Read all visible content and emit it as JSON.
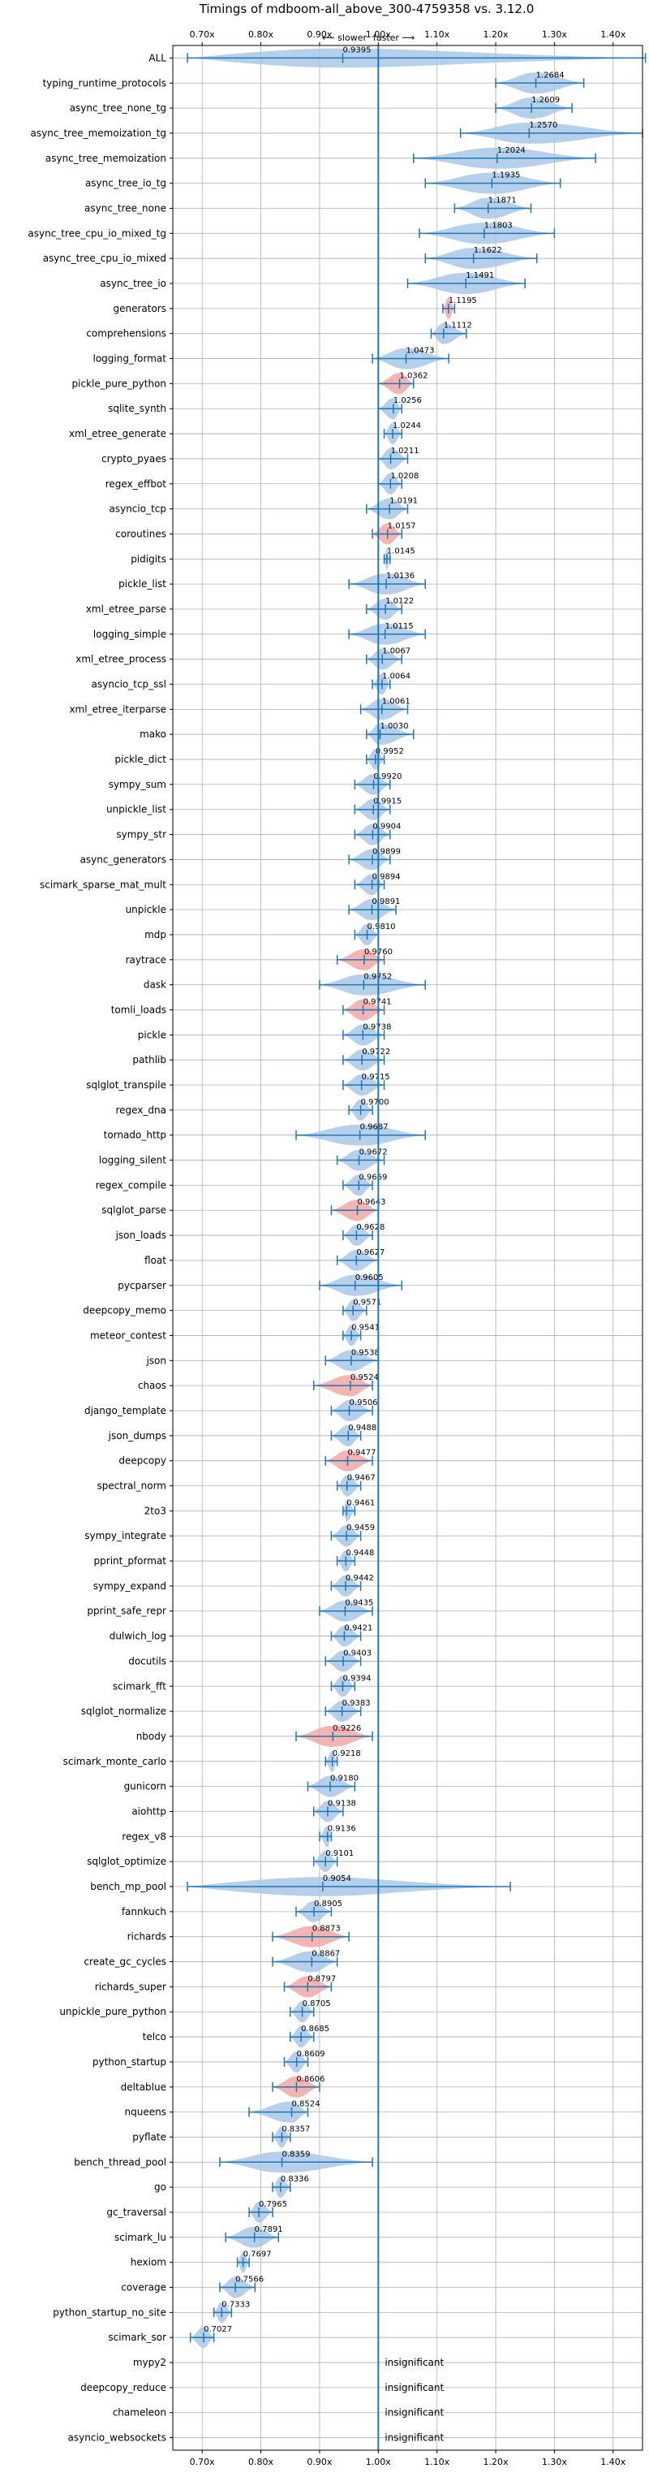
{
  "chart_data": {
    "type": "violin",
    "title": "Timings of mdboom-all_above_300-4759358 vs. 3.12.0",
    "subtitle_slower": "⟵ slower",
    "subtitle_faster": "faster ⟶",
    "xlim": [
      0.65,
      1.45
    ],
    "x_ticks": [
      0.7,
      0.8,
      0.9,
      1.0,
      1.1,
      1.2,
      1.3,
      1.4
    ],
    "x_tick_labels": [
      "0.70x",
      "0.80x",
      "0.90x",
      "1.00x",
      "1.10x",
      "1.20x",
      "1.30x",
      "1.40x"
    ],
    "reference_x": 1.0,
    "colors": {
      "normal": "#a9c8e8",
      "regression": "#f2a7a6",
      "line": "#1f77b4"
    },
    "insignificant_label": "insignificant",
    "benchmarks": [
      {
        "name": "ALL",
        "mean": 0.9395,
        "min": 0.675,
        "max": 1.455,
        "label": "0.9395",
        "color": "normal",
        "wide": true
      },
      {
        "name": "typing_runtime_protocols",
        "mean": 1.2684,
        "min": 1.2,
        "max": 1.35,
        "label": "1.2684",
        "color": "normal"
      },
      {
        "name": "async_tree_none_tg",
        "mean": 1.2609,
        "min": 1.2,
        "max": 1.33,
        "label": "1.2609",
        "color": "normal"
      },
      {
        "name": "async_tree_memoization_tg",
        "mean": 1.257,
        "min": 1.14,
        "max": 1.45,
        "label": "1.2570",
        "color": "normal"
      },
      {
        "name": "async_tree_memoization",
        "mean": 1.2024,
        "min": 1.06,
        "max": 1.37,
        "label": "1.2024",
        "color": "normal"
      },
      {
        "name": "async_tree_io_tg",
        "mean": 1.1935,
        "min": 1.08,
        "max": 1.31,
        "label": "1.1935",
        "color": "normal"
      },
      {
        "name": "async_tree_none",
        "mean": 1.1871,
        "min": 1.13,
        "max": 1.26,
        "label": "1.1871",
        "color": "normal"
      },
      {
        "name": "async_tree_cpu_io_mixed_tg",
        "mean": 1.1803,
        "min": 1.07,
        "max": 1.3,
        "label": "1.1803",
        "color": "normal"
      },
      {
        "name": "async_tree_cpu_io_mixed",
        "mean": 1.1622,
        "min": 1.08,
        "max": 1.27,
        "label": "1.1622",
        "color": "normal"
      },
      {
        "name": "async_tree_io",
        "mean": 1.1491,
        "min": 1.05,
        "max": 1.25,
        "label": "1.1491",
        "color": "normal"
      },
      {
        "name": "generators",
        "mean": 1.1195,
        "min": 1.11,
        "max": 1.13,
        "label": "1.1195",
        "color": "regression"
      },
      {
        "name": "comprehensions",
        "mean": 1.1112,
        "min": 1.09,
        "max": 1.15,
        "label": "1.1112",
        "color": "normal"
      },
      {
        "name": "logging_format",
        "mean": 1.0473,
        "min": 0.99,
        "max": 1.12,
        "label": "1.0473",
        "color": "normal"
      },
      {
        "name": "pickle_pure_python",
        "mean": 1.0362,
        "min": 1.0,
        "max": 1.06,
        "label": "1.0362",
        "color": "regression"
      },
      {
        "name": "sqlite_synth",
        "mean": 1.0256,
        "min": 1.0,
        "max": 1.04,
        "label": "1.0256",
        "color": "normal"
      },
      {
        "name": "xml_etree_generate",
        "mean": 1.0244,
        "min": 1.01,
        "max": 1.04,
        "label": "1.0244",
        "color": "normal"
      },
      {
        "name": "crypto_pyaes",
        "mean": 1.0211,
        "min": 1.0,
        "max": 1.05,
        "label": "1.0211",
        "color": "normal"
      },
      {
        "name": "regex_effbot",
        "mean": 1.0208,
        "min": 1.0,
        "max": 1.04,
        "label": "1.0208",
        "color": "normal"
      },
      {
        "name": "asyncio_tcp",
        "mean": 1.0191,
        "min": 0.98,
        "max": 1.05,
        "label": "1.0191",
        "color": "normal"
      },
      {
        "name": "coroutines",
        "mean": 1.0157,
        "min": 0.99,
        "max": 1.04,
        "label": "1.0157",
        "color": "regression"
      },
      {
        "name": "pidigits",
        "mean": 1.0145,
        "min": 1.01,
        "max": 1.02,
        "label": "1.0145",
        "color": "normal"
      },
      {
        "name": "pickle_list",
        "mean": 1.0136,
        "min": 0.95,
        "max": 1.08,
        "label": "1.0136",
        "color": "normal"
      },
      {
        "name": "xml_etree_parse",
        "mean": 1.0122,
        "min": 0.98,
        "max": 1.04,
        "label": "1.0122",
        "color": "normal"
      },
      {
        "name": "logging_simple",
        "mean": 1.0115,
        "min": 0.95,
        "max": 1.08,
        "label": "1.0115",
        "color": "normal"
      },
      {
        "name": "xml_etree_process",
        "mean": 1.0067,
        "min": 0.98,
        "max": 1.04,
        "label": "1.0067",
        "color": "normal"
      },
      {
        "name": "asyncio_tcp_ssl",
        "mean": 1.0064,
        "min": 0.99,
        "max": 1.02,
        "label": "1.0064",
        "color": "normal"
      },
      {
        "name": "xml_etree_iterparse",
        "mean": 1.0061,
        "min": 0.97,
        "max": 1.05,
        "label": "1.0061",
        "color": "normal"
      },
      {
        "name": "mako",
        "mean": 1.003,
        "min": 0.98,
        "max": 1.06,
        "label": "1.0030",
        "color": "normal"
      },
      {
        "name": "pickle_dict",
        "mean": 0.9952,
        "min": 0.98,
        "max": 1.01,
        "label": "0.9952",
        "color": "normal"
      },
      {
        "name": "sympy_sum",
        "mean": 0.992,
        "min": 0.96,
        "max": 1.02,
        "label": "0.9920",
        "color": "normal"
      },
      {
        "name": "unpickle_list",
        "mean": 0.9915,
        "min": 0.96,
        "max": 1.02,
        "label": "0.9915",
        "color": "normal"
      },
      {
        "name": "sympy_str",
        "mean": 0.9904,
        "min": 0.96,
        "max": 1.02,
        "label": "0.9904",
        "color": "normal"
      },
      {
        "name": "async_generators",
        "mean": 0.9899,
        "min": 0.95,
        "max": 1.02,
        "label": "0.9899",
        "color": "normal"
      },
      {
        "name": "scimark_sparse_mat_mult",
        "mean": 0.9894,
        "min": 0.96,
        "max": 1.01,
        "label": "0.9894",
        "color": "normal"
      },
      {
        "name": "unpickle",
        "mean": 0.9891,
        "min": 0.95,
        "max": 1.03,
        "label": "0.9891",
        "color": "normal"
      },
      {
        "name": "mdp",
        "mean": 0.981,
        "min": 0.96,
        "max": 1.0,
        "label": "0.9810",
        "color": "normal"
      },
      {
        "name": "raytrace",
        "mean": 0.976,
        "min": 0.93,
        "max": 1.01,
        "label": "0.9760",
        "color": "regression"
      },
      {
        "name": "dask",
        "mean": 0.9752,
        "min": 0.9,
        "max": 1.08,
        "label": "0.9752",
        "color": "normal"
      },
      {
        "name": "tomli_loads",
        "mean": 0.9741,
        "min": 0.94,
        "max": 1.01,
        "label": "0.9741",
        "color": "regression"
      },
      {
        "name": "pickle",
        "mean": 0.9738,
        "min": 0.94,
        "max": 1.01,
        "label": "0.9738",
        "color": "normal"
      },
      {
        "name": "pathlib",
        "mean": 0.9722,
        "min": 0.94,
        "max": 1.01,
        "label": "0.9722",
        "color": "normal"
      },
      {
        "name": "sqlglot_transpile",
        "mean": 0.9715,
        "min": 0.94,
        "max": 1.01,
        "label": "0.9715",
        "color": "normal"
      },
      {
        "name": "regex_dna",
        "mean": 0.97,
        "min": 0.95,
        "max": 0.99,
        "label": "0.9700",
        "color": "normal"
      },
      {
        "name": "tornado_http",
        "mean": 0.9687,
        "min": 0.86,
        "max": 1.08,
        "label": "0.9687",
        "color": "normal"
      },
      {
        "name": "logging_silent",
        "mean": 0.9672,
        "min": 0.93,
        "max": 1.01,
        "label": "0.9672",
        "color": "normal"
      },
      {
        "name": "regex_compile",
        "mean": 0.9669,
        "min": 0.94,
        "max": 0.99,
        "label": "0.9669",
        "color": "normal"
      },
      {
        "name": "sqlglot_parse",
        "mean": 0.9643,
        "min": 0.92,
        "max": 1.0,
        "label": "0.9643",
        "color": "regression"
      },
      {
        "name": "json_loads",
        "mean": 0.9628,
        "min": 0.94,
        "max": 0.99,
        "label": "0.9628",
        "color": "normal"
      },
      {
        "name": "float",
        "mean": 0.9627,
        "min": 0.93,
        "max": 1.0,
        "label": "0.9627",
        "color": "normal"
      },
      {
        "name": "pycparser",
        "mean": 0.9605,
        "min": 0.9,
        "max": 1.04,
        "label": "0.9605",
        "color": "normal"
      },
      {
        "name": "deepcopy_memo",
        "mean": 0.9571,
        "min": 0.94,
        "max": 0.98,
        "label": "0.9571",
        "color": "normal"
      },
      {
        "name": "meteor_contest",
        "mean": 0.9541,
        "min": 0.94,
        "max": 0.97,
        "label": "0.9541",
        "color": "normal"
      },
      {
        "name": "json",
        "mean": 0.9538,
        "min": 0.91,
        "max": 1.0,
        "label": "0.9538",
        "color": "normal"
      },
      {
        "name": "chaos",
        "mean": 0.9524,
        "min": 0.89,
        "max": 0.99,
        "label": "0.9524",
        "color": "regression"
      },
      {
        "name": "django_template",
        "mean": 0.9506,
        "min": 0.92,
        "max": 0.99,
        "label": "0.9506",
        "color": "normal"
      },
      {
        "name": "json_dumps",
        "mean": 0.9488,
        "min": 0.92,
        "max": 0.97,
        "label": "0.9488",
        "color": "normal"
      },
      {
        "name": "deepcopy",
        "mean": 0.9477,
        "min": 0.91,
        "max": 0.99,
        "label": "0.9477",
        "color": "regression"
      },
      {
        "name": "spectral_norm",
        "mean": 0.9467,
        "min": 0.93,
        "max": 0.97,
        "label": "0.9467",
        "color": "normal"
      },
      {
        "name": "2to3",
        "mean": 0.9461,
        "min": 0.94,
        "max": 0.96,
        "label": "0.9461",
        "color": "normal"
      },
      {
        "name": "sympy_integrate",
        "mean": 0.9459,
        "min": 0.92,
        "max": 0.97,
        "label": "0.9459",
        "color": "normal"
      },
      {
        "name": "pprint_pformat",
        "mean": 0.9448,
        "min": 0.93,
        "max": 0.96,
        "label": "0.9448",
        "color": "normal"
      },
      {
        "name": "sympy_expand",
        "mean": 0.9442,
        "min": 0.92,
        "max": 0.97,
        "label": "0.9442",
        "color": "normal"
      },
      {
        "name": "pprint_safe_repr",
        "mean": 0.9435,
        "min": 0.9,
        "max": 0.99,
        "label": "0.9435",
        "color": "normal"
      },
      {
        "name": "dulwich_log",
        "mean": 0.9421,
        "min": 0.92,
        "max": 0.97,
        "label": "0.9421",
        "color": "normal"
      },
      {
        "name": "docutils",
        "mean": 0.9403,
        "min": 0.91,
        "max": 0.97,
        "label": "0.9403",
        "color": "normal"
      },
      {
        "name": "scimark_fft",
        "mean": 0.9394,
        "min": 0.92,
        "max": 0.96,
        "label": "0.9394",
        "color": "normal"
      },
      {
        "name": "sqlglot_normalize",
        "mean": 0.9383,
        "min": 0.91,
        "max": 0.97,
        "label": "0.9383",
        "color": "normal"
      },
      {
        "name": "nbody",
        "mean": 0.9226,
        "min": 0.86,
        "max": 0.99,
        "label": "0.9226",
        "color": "regression"
      },
      {
        "name": "scimark_monte_carlo",
        "mean": 0.9218,
        "min": 0.91,
        "max": 0.93,
        "label": "0.9218",
        "color": "normal"
      },
      {
        "name": "gunicorn",
        "mean": 0.918,
        "min": 0.88,
        "max": 0.96,
        "label": "0.9180",
        "color": "normal"
      },
      {
        "name": "aiohttp",
        "mean": 0.9138,
        "min": 0.89,
        "max": 0.94,
        "label": "0.9138",
        "color": "normal"
      },
      {
        "name": "regex_v8",
        "mean": 0.9136,
        "min": 0.9,
        "max": 0.92,
        "label": "0.9136",
        "color": "normal"
      },
      {
        "name": "sqlglot_optimize",
        "mean": 0.9101,
        "min": 0.89,
        "max": 0.93,
        "label": "0.9101",
        "color": "normal"
      },
      {
        "name": "bench_mp_pool",
        "mean": 0.9054,
        "min": 0.675,
        "max": 1.225,
        "label": "0.9054",
        "color": "normal",
        "wide": true
      },
      {
        "name": "fannkuch",
        "mean": 0.8905,
        "min": 0.86,
        "max": 0.92,
        "label": "0.8905",
        "color": "normal"
      },
      {
        "name": "richards",
        "mean": 0.8873,
        "min": 0.82,
        "max": 0.95,
        "label": "0.8873",
        "color": "regression"
      },
      {
        "name": "create_gc_cycles",
        "mean": 0.8867,
        "min": 0.82,
        "max": 0.93,
        "label": "0.8867",
        "color": "normal"
      },
      {
        "name": "richards_super",
        "mean": 0.8797,
        "min": 0.84,
        "max": 0.92,
        "label": "0.8797",
        "color": "regression"
      },
      {
        "name": "unpickle_pure_python",
        "mean": 0.8705,
        "min": 0.85,
        "max": 0.89,
        "label": "0.8705",
        "color": "normal"
      },
      {
        "name": "telco",
        "mean": 0.8685,
        "min": 0.85,
        "max": 0.89,
        "label": "0.8685",
        "color": "normal"
      },
      {
        "name": "python_startup",
        "mean": 0.8609,
        "min": 0.84,
        "max": 0.88,
        "label": "0.8609",
        "color": "normal"
      },
      {
        "name": "deltablue",
        "mean": 0.8606,
        "min": 0.82,
        "max": 0.9,
        "label": "0.8606",
        "color": "regression"
      },
      {
        "name": "nqueens",
        "mean": 0.8524,
        "min": 0.78,
        "max": 0.88,
        "label": "0.8524",
        "color": "normal"
      },
      {
        "name": "pyflate",
        "mean": 0.8357,
        "min": 0.82,
        "max": 0.85,
        "label": "0.8357",
        "color": "normal"
      },
      {
        "name": "bench_thread_pool",
        "mean": 0.8359,
        "min": 0.73,
        "max": 0.99,
        "label": "0.8359",
        "color": "normal"
      },
      {
        "name": "go",
        "mean": 0.8336,
        "min": 0.82,
        "max": 0.85,
        "label": "0.8336",
        "color": "normal"
      },
      {
        "name": "gc_traversal",
        "mean": 0.7965,
        "min": 0.78,
        "max": 0.82,
        "label": "0.7965",
        "color": "normal"
      },
      {
        "name": "scimark_lu",
        "mean": 0.7891,
        "min": 0.74,
        "max": 0.83,
        "label": "0.7891",
        "color": "normal"
      },
      {
        "name": "hexiom",
        "mean": 0.7697,
        "min": 0.76,
        "max": 0.78,
        "label": "0.7697",
        "color": "normal"
      },
      {
        "name": "coverage",
        "mean": 0.7566,
        "min": 0.73,
        "max": 0.79,
        "label": "0.7566",
        "color": "normal"
      },
      {
        "name": "python_startup_no_site",
        "mean": 0.7333,
        "min": 0.72,
        "max": 0.75,
        "label": "0.7333",
        "color": "normal"
      },
      {
        "name": "scimark_sor",
        "mean": 0.7027,
        "min": 0.68,
        "max": 0.72,
        "label": "0.7027",
        "color": "normal"
      },
      {
        "name": "mypy2",
        "insignificant": true
      },
      {
        "name": "deepcopy_reduce",
        "insignificant": true
      },
      {
        "name": "chameleon",
        "insignificant": true
      },
      {
        "name": "asyncio_websockets",
        "insignificant": true
      }
    ]
  }
}
